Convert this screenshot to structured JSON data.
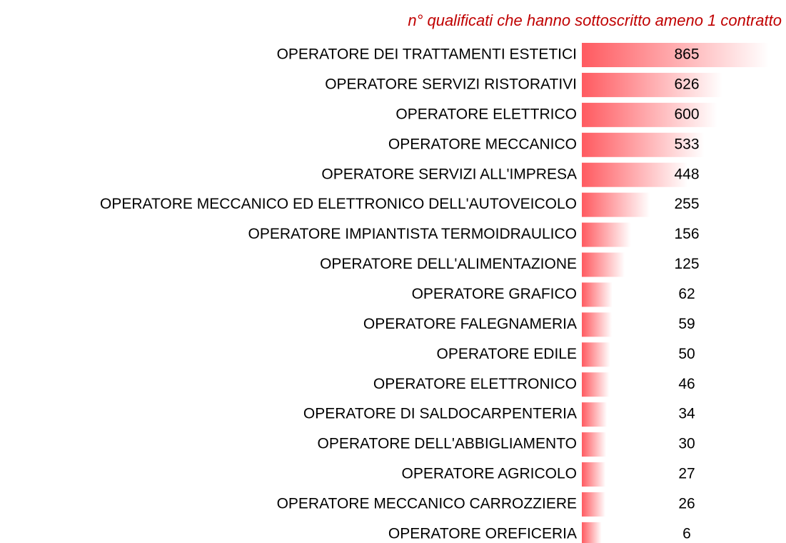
{
  "chart_data": {
    "type": "bar",
    "orientation": "horizontal",
    "title": "n° qualificati che hanno sottoscritto ameno 1 contratto",
    "color": "#ff5a60",
    "categories": [
      "OPERATORE DEI TRATTAMENTI ESTETICI",
      "OPERATORE SERVIZI RISTORATIVI",
      "OPERATORE ELETTRICO",
      "OPERATORE MECCANICO",
      "OPERATORE SERVIZI ALL'IMPRESA",
      "OPERATORE MECCANICO ED ELETTRONICO DELL'AUTOVEICOLO",
      "OPERATORE IMPIANTISTA TERMOIDRAULICO",
      "OPERATORE DELL'ALIMENTAZIONE",
      "OPERATORE GRAFICO",
      "OPERATORE FALEGNAMERIA",
      "OPERATORE EDILE",
      "OPERATORE ELETTRONICO",
      "OPERATORE DI SALDOCARPENTERIA",
      "OPERATORE DELL'ABBIGLIAMENTO",
      "OPERATORE AGRICOLO",
      "OPERATORE MECCANICO CARROZZIERE",
      "OPERATORE OREFICERIA"
    ],
    "values": [
      865,
      626,
      600,
      533,
      448,
      255,
      156,
      125,
      62,
      59,
      50,
      46,
      34,
      30,
      27,
      26,
      6
    ]
  }
}
